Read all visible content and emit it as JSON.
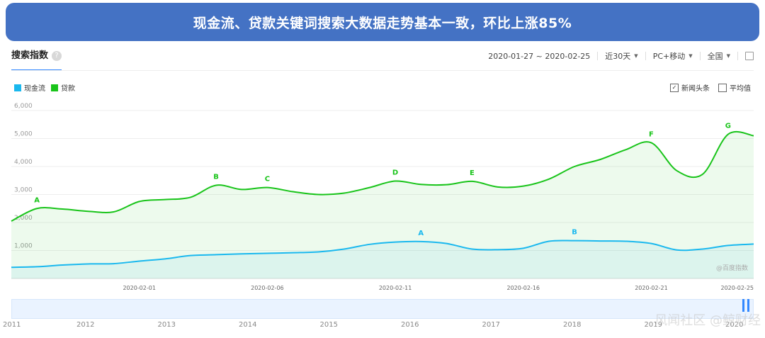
{
  "banner": {
    "title": "现金流、贷款关键词搜索大数据走势基本一致，环比上涨85%"
  },
  "header": {
    "tab_label": "搜索指数",
    "help_icon": "question-circle-icon",
    "date_range": "2020-01-27 ~ 2020-02-25",
    "period": "近30天",
    "device": "PC+移动",
    "region": "全国",
    "share_icon": "external-link-icon"
  },
  "legend": [
    {
      "name": "现金流",
      "color": "#1ab8ee"
    },
    {
      "name": "贷款",
      "color": "#19c41a"
    }
  ],
  "options": {
    "news_label": "新闻头条",
    "news_checked": true,
    "avg_label": "平均值",
    "avg_checked": false
  },
  "chart_data": {
    "type": "area",
    "y_ticks": [
      "6,000",
      "5,000",
      "4,000",
      "3,000",
      "2,000",
      "1,000"
    ],
    "ylim": [
      0,
      6000
    ],
    "x_tick_labels": [
      "2020-02-01",
      "2020-02-06",
      "2020-02-11",
      "2020-02-16",
      "2020-02-21",
      "2020-02-25"
    ],
    "x_tick_days": [
      5,
      10,
      15,
      20,
      25,
      29
    ],
    "x_start": "2020-01-27",
    "series": [
      {
        "name": "贷款",
        "color": "#19c41a",
        "values": [
          2050,
          2500,
          2480,
          2400,
          2380,
          2750,
          2820,
          2900,
          3330,
          3180,
          3250,
          3100,
          3000,
          3050,
          3250,
          3480,
          3360,
          3350,
          3470,
          3270,
          3300,
          3550,
          4000,
          4250,
          4600,
          4850,
          3850,
          3720,
          5150,
          5100
        ]
      },
      {
        "name": "现金流",
        "color": "#1ab8ee",
        "values": [
          400,
          420,
          480,
          520,
          530,
          620,
          700,
          820,
          850,
          880,
          900,
          920,
          950,
          1050,
          1220,
          1300,
          1320,
          1250,
          1050,
          1030,
          1080,
          1330,
          1350,
          1340,
          1330,
          1250,
          1020,
          1050,
          1180,
          1230
        ]
      }
    ],
    "annotations": [
      {
        "label": "A",
        "series": "贷款",
        "day": 1,
        "value": 2500
      },
      {
        "label": "B",
        "series": "贷款",
        "day": 8,
        "value": 3330
      },
      {
        "label": "C",
        "series": "贷款",
        "day": 10,
        "value": 3250
      },
      {
        "label": "D",
        "series": "贷款",
        "day": 15,
        "value": 3480
      },
      {
        "label": "E",
        "series": "贷款",
        "day": 18,
        "value": 3470
      },
      {
        "label": "F",
        "series": "贷款",
        "day": 25,
        "value": 4850
      },
      {
        "label": "G",
        "series": "贷款",
        "day": 28,
        "value": 5150
      },
      {
        "label": "A",
        "series": "现金流",
        "day": 16,
        "value": 1320
      },
      {
        "label": "B",
        "series": "现金流",
        "day": 22,
        "value": 1350
      }
    ],
    "watermark": "@百度指数"
  },
  "timeline": {
    "years": [
      "2011",
      "2012",
      "2013",
      "2014",
      "2015",
      "2016",
      "2017",
      "2018",
      "2019",
      "2020"
    ],
    "watermark_text": "风闻社区 @鲸财经"
  }
}
